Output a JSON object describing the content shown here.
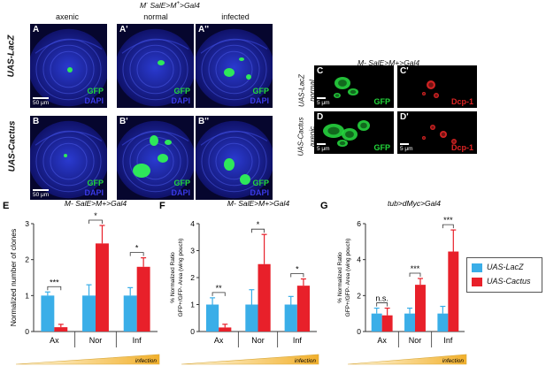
{
  "header_main": {
    "a": "M",
    "sup": "+",
    "b": " SalE>M",
    "sup2": "+",
    "c": ">Gal4",
    "sup_minus": "-"
  },
  "columns": [
    "axenic",
    "normal",
    "infected"
  ],
  "rows": [
    "UAS-LacZ",
    "UAS-Cactus"
  ],
  "panels_left": [
    {
      "letter": "A",
      "ch1": "GFP",
      "ch2": "DAPI",
      "scale": "50 μm"
    },
    {
      "letter": "A'",
      "ch1": "GFP",
      "ch2": "DAPI",
      "scale": ""
    },
    {
      "letter": "A''",
      "ch1": "GFP",
      "ch2": "DAPI",
      "scale": ""
    },
    {
      "letter": "B",
      "ch1": "GFP",
      "ch2": "DAPI",
      "scale": "50 μm"
    },
    {
      "letter": "B'",
      "ch1": "GFP",
      "ch2": "DAPI",
      "scale": ""
    },
    {
      "letter": "B''",
      "ch1": "GFP",
      "ch2": "DAPI",
      "scale": ""
    }
  ],
  "right_header": "M- SalE>M+>Gal4",
  "right_rows": [
    {
      "line": "UAS-LacZ",
      "cond": "normal"
    },
    {
      "line": "UAS-Cactus",
      "cond": "axenic"
    }
  ],
  "panels_right": [
    {
      "letter": "C",
      "ch": "GFP",
      "scale": "5 μm"
    },
    {
      "letter": "C'",
      "ch": "Dcp-1",
      "scale": ""
    },
    {
      "letter": "D",
      "ch": "GFP",
      "scale": "5 μm"
    },
    {
      "letter": "D'",
      "ch": "Dcp-1",
      "scale": "5 μm"
    }
  ],
  "chart_data": [
    {
      "letter": "E",
      "type": "bar",
      "title": "M- SalE>M+>Gal4",
      "ylabel": "Normalized number of clones",
      "categories": [
        "Ax",
        "Nor",
        "Inf"
      ],
      "ylim": [
        0,
        3
      ],
      "yticks": [
        0,
        1,
        2,
        3
      ],
      "series": [
        {
          "name": "UAS-LacZ",
          "values": [
            1.0,
            1.0,
            1.0
          ],
          "err": [
            0.1,
            0.3,
            0.22
          ]
        },
        {
          "name": "UAS-Cactus",
          "values": [
            0.12,
            2.45,
            1.8
          ],
          "err": [
            0.08,
            0.5,
            0.25
          ]
        }
      ],
      "significance": [
        "***",
        "*",
        "*"
      ],
      "gradient_label": "infection"
    },
    {
      "letter": "F",
      "type": "bar",
      "title": "M- SalE>M+>Gal4",
      "ylabel": "% Normalized Ratio GFP+/GFP- Area (wing pouch)",
      "categories": [
        "Ax",
        "Nor",
        "Inf"
      ],
      "ylim": [
        0,
        4
      ],
      "yticks": [
        0,
        1,
        2,
        3,
        4
      ],
      "series": [
        {
          "name": "UAS-LacZ",
          "values": [
            1.0,
            1.0,
            1.0
          ],
          "err": [
            0.25,
            0.55,
            0.3
          ]
        },
        {
          "name": "UAS-Cactus",
          "values": [
            0.15,
            2.5,
            1.7
          ],
          "err": [
            0.12,
            1.1,
            0.25
          ]
        }
      ],
      "significance": [
        "**",
        "*",
        "*"
      ],
      "gradient_label": "infection"
    },
    {
      "letter": "G",
      "type": "bar",
      "title": "tub>dMyc>Gal4",
      "ylabel": "% Normalized Ratio GFP+/GFP- Area (wing pouch)",
      "categories": [
        "Ax",
        "Nor",
        "Inf"
      ],
      "ylim": [
        0,
        6
      ],
      "yticks": [
        0,
        2,
        4,
        6
      ],
      "series": [
        {
          "name": "UAS-LacZ",
          "values": [
            1.0,
            1.0,
            1.0
          ],
          "err": [
            0.3,
            0.3,
            0.4
          ]
        },
        {
          "name": "UAS-Cactus",
          "values": [
            0.9,
            2.6,
            4.45
          ],
          "err": [
            0.4,
            0.35,
            1.2
          ]
        }
      ],
      "significance": [
        "n.s.",
        "***",
        "***"
      ],
      "gradient_label": "infection"
    }
  ],
  "legend": [
    {
      "name": "UAS-LacZ",
      "color": "#3aaee8"
    },
    {
      "name": "UAS-Cactus",
      "color": "#e8202a"
    }
  ],
  "colors": {
    "lacz": "#3aaee8",
    "cactus": "#e8202a",
    "gradient_from": "#fffbe6",
    "gradient_to": "#f2b02c"
  }
}
